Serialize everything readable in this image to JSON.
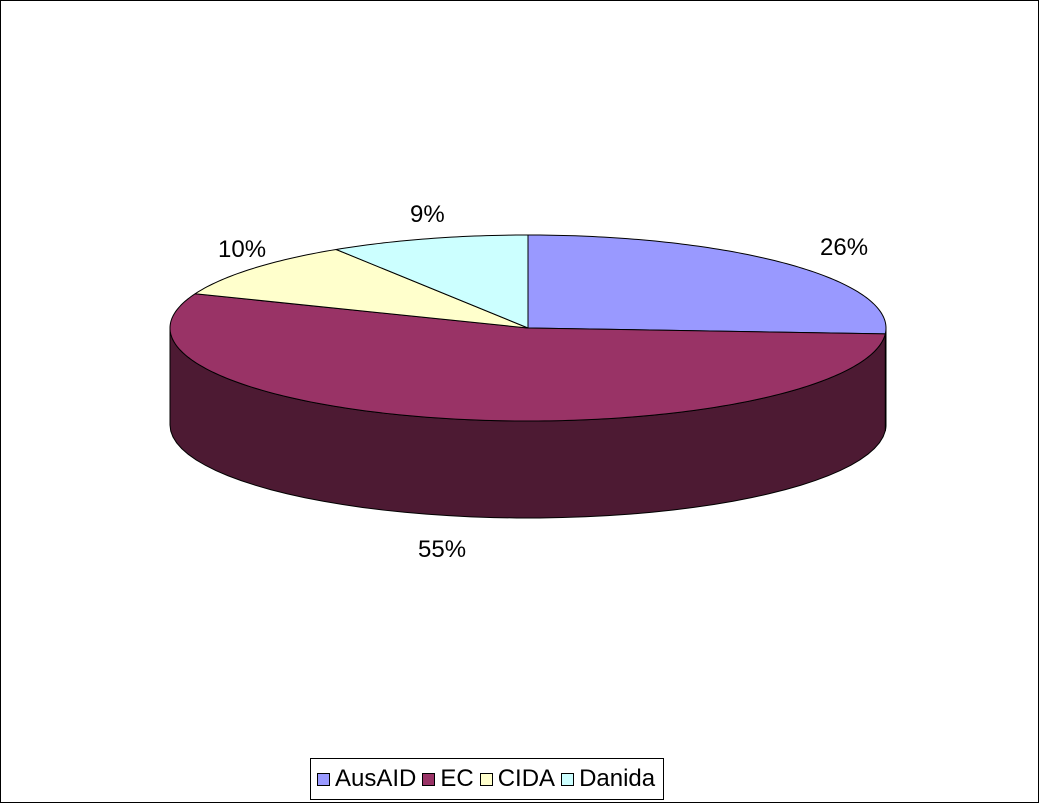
{
  "chart_data": {
    "type": "pie",
    "three_d": true,
    "categories": [
      "AusAID",
      "EC",
      "CIDA",
      "Danida"
    ],
    "values": [
      26,
      55,
      10,
      9
    ],
    "labels": [
      "26%",
      "55%",
      "10%",
      "9%"
    ],
    "colors": [
      "#9999FF",
      "#993366",
      "#FFFFCC",
      "#CCFFFF"
    ],
    "side_colors": [
      "#4C4C80",
      "#4D1A33",
      "#808066",
      "#668080"
    ],
    "legend_position": "bottom",
    "start_angle": "12 o'clock, clockwise"
  }
}
